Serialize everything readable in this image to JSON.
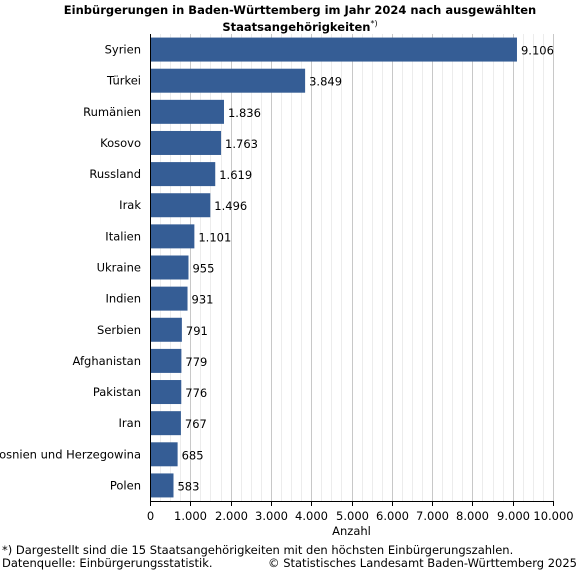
{
  "chart_data": {
    "type": "bar",
    "orientation": "horizontal",
    "title": "Einbürgerungen in Baden-Württemberg im Jahr 2024 nach ausgewählten",
    "title_line2": "Staatsangehörigkeiten",
    "title_marker": "*)",
    "xlabel": "Anzahl",
    "ylabel": "",
    "categories": [
      "Syrien",
      "Türkei",
      "Rumänien",
      "Kosovo",
      "Russland",
      "Irak",
      "Italien",
      "Ukraine",
      "Indien",
      "Serbien",
      "Afghanistan",
      "Pakistan",
      "Iran",
      "Bosnien und Herzegowina",
      "Polen"
    ],
    "values": [
      9106,
      3849,
      1836,
      1763,
      1619,
      1496,
      1101,
      955,
      931,
      791,
      779,
      776,
      767,
      685,
      583
    ],
    "value_labels": [
      "9.106",
      "3.849",
      "1.836",
      "1.763",
      "1.619",
      "1.496",
      "1.101",
      "955",
      "931",
      "791",
      "779",
      "776",
      "767",
      "685",
      "583"
    ],
    "xlim": [
      0,
      10000
    ],
    "xticks": [
      0,
      1000,
      2000,
      3000,
      4000,
      5000,
      6000,
      7000,
      8000,
      9000,
      10000
    ],
    "xtick_labels": [
      "0",
      "1.000",
      "2.000",
      "3.000",
      "4.000",
      "5.000",
      "6.000",
      "7.000",
      "8.000",
      "9.000",
      "10.000"
    ],
    "grid": true,
    "legend": "none",
    "bar_color": "#355d95",
    "grid_color": "#d9d9d9"
  },
  "footnote": "*) Dargestellt sind die 15 Staatsangehörigkeiten mit den höchsten Einbürgerungszahlen.",
  "source": "Datenquelle: Einbürgerungsstatistik.",
  "copyright": "© Statistisches Landesamt Baden-Württemberg 2025"
}
